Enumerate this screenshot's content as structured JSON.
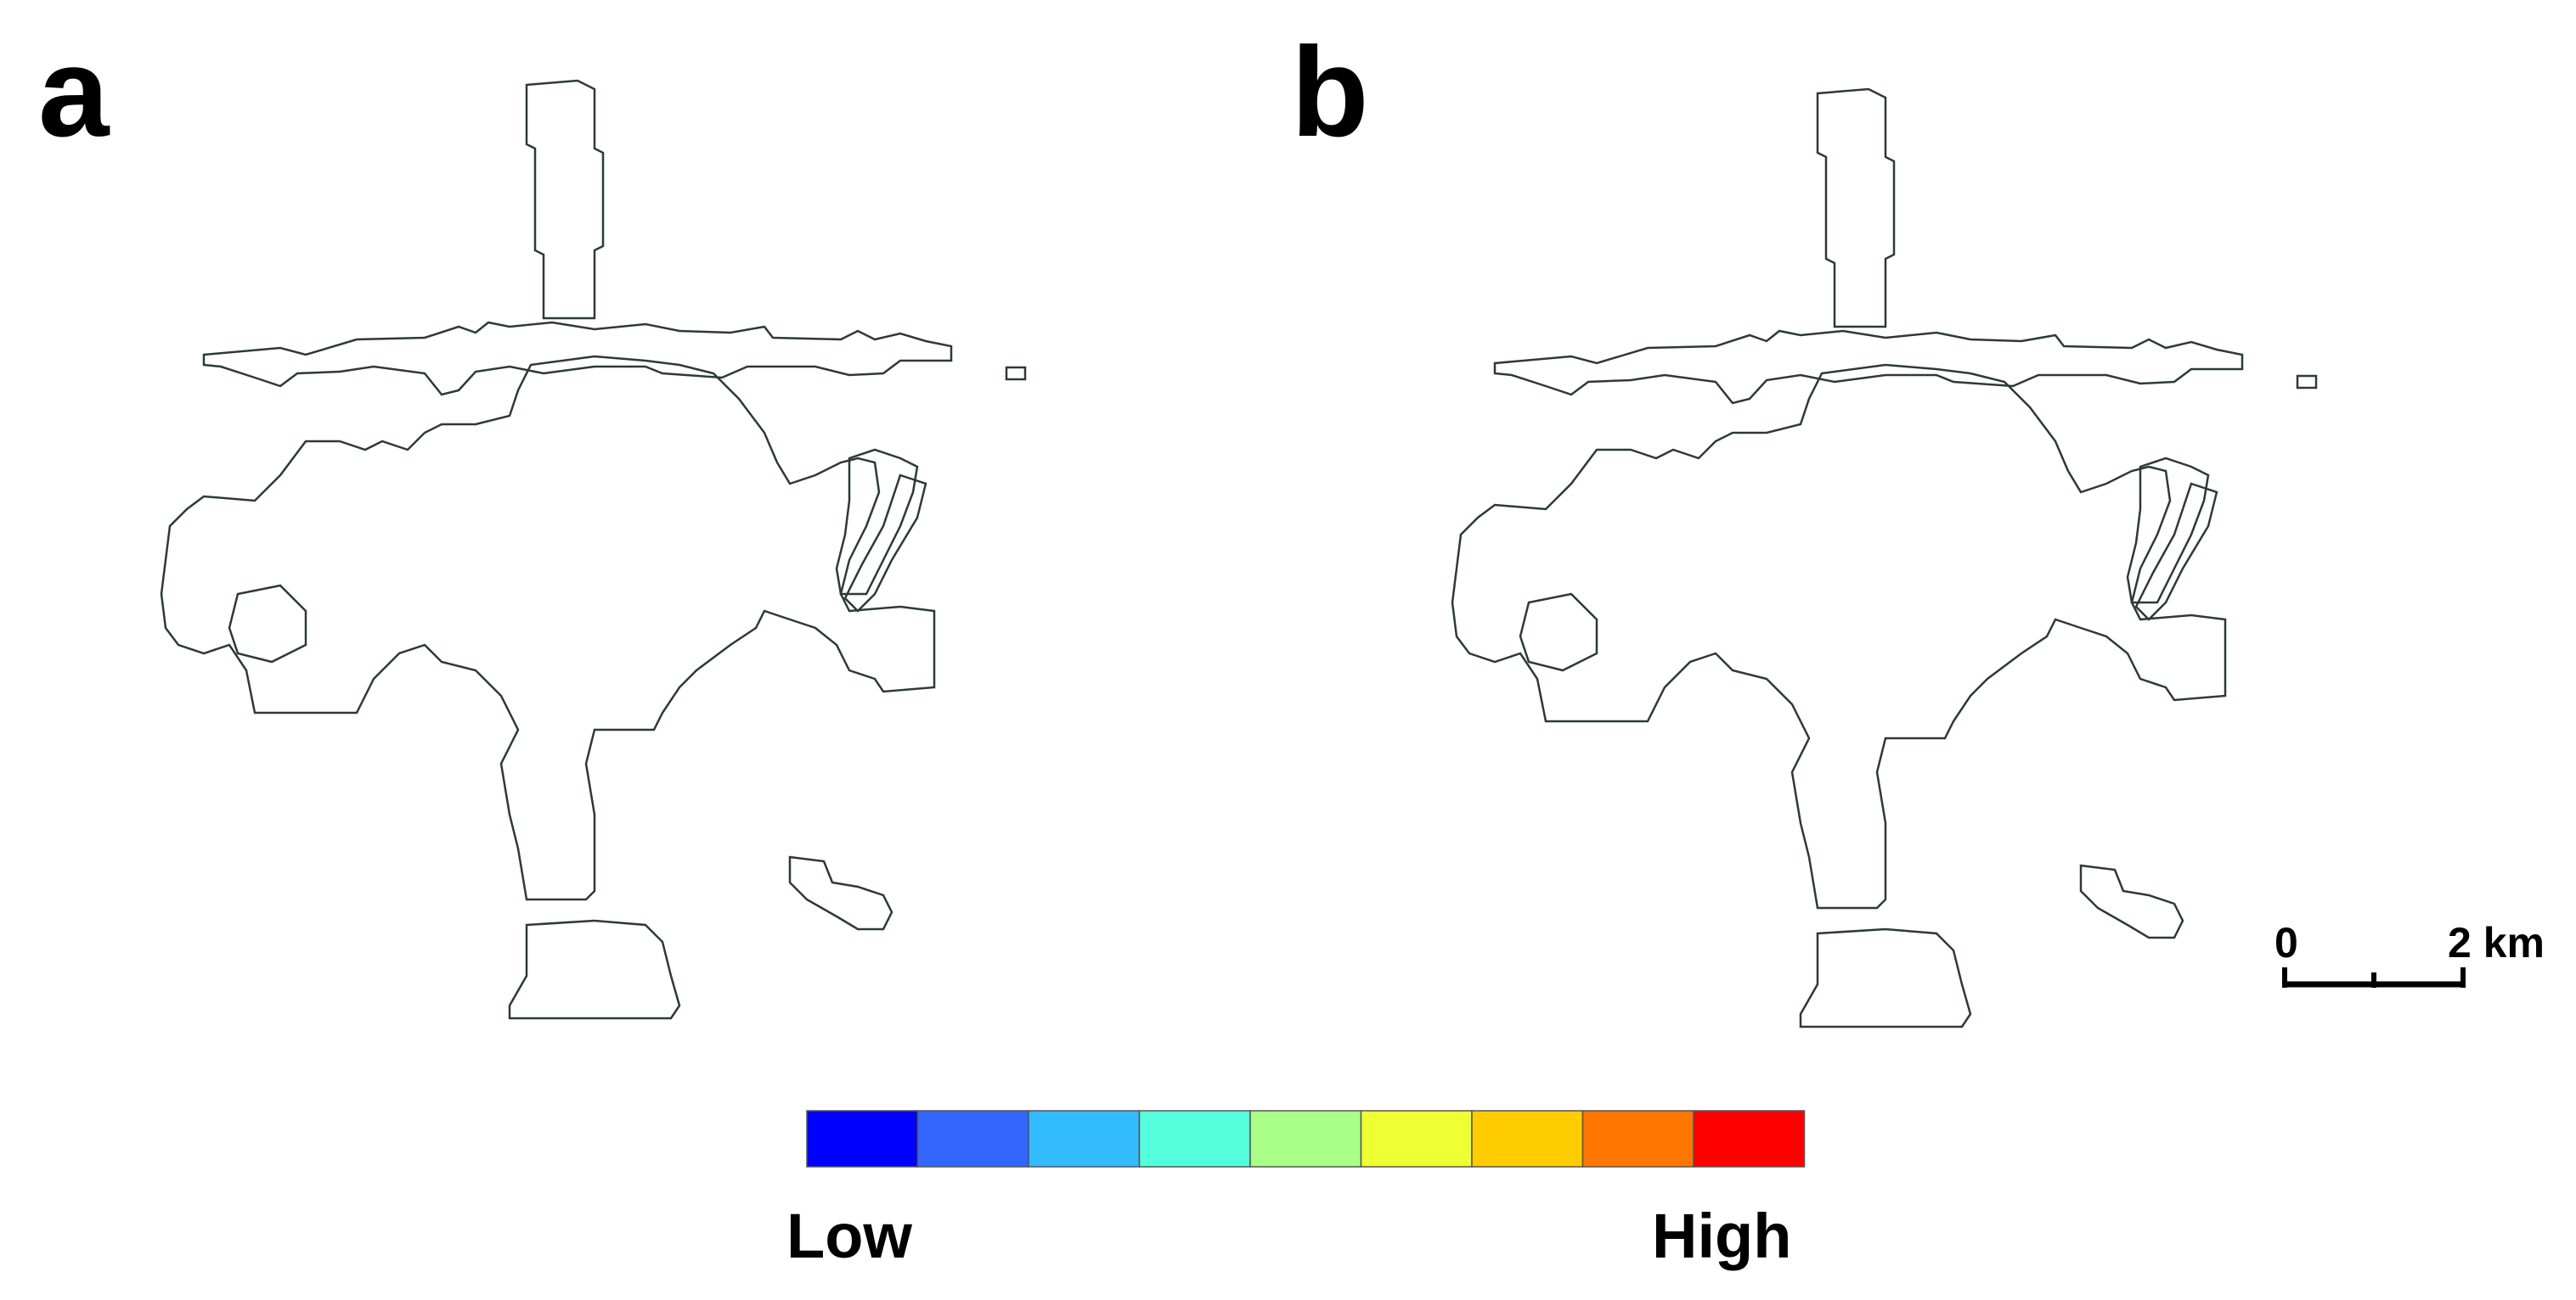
{
  "panels": [
    {
      "label": "a"
    },
    {
      "label": "b"
    }
  ],
  "scale_bar": {
    "start_label": "0",
    "end_label": "2 km"
  },
  "legend": {
    "low_label": "Low",
    "high_label": "High",
    "classes": [
      "#0000ff",
      "#3366ff",
      "#33bbff",
      "#55ffdd",
      "#aaff88",
      "#eeff33",
      "#ffcc00",
      "#ff7700",
      "#ff0000"
    ]
  }
}
